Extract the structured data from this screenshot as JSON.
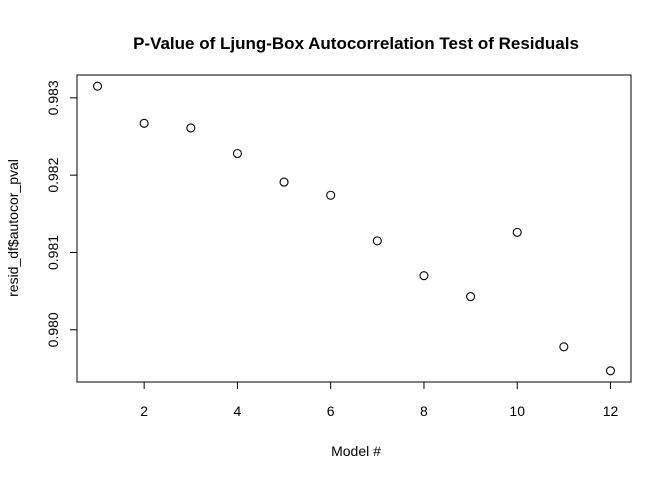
{
  "chart_data": {
    "type": "scatter",
    "title": "P-Value of Ljung-Box Autocorrelation Test of Residuals",
    "xlabel": "Model #",
    "ylabel": "resid_df$autocor_pval",
    "x": [
      1,
      2,
      3,
      4,
      5,
      6,
      7,
      8,
      9,
      10,
      11,
      12
    ],
    "y": [
      0.98315,
      0.98267,
      0.98261,
      0.98228,
      0.98191,
      0.98174,
      0.98115,
      0.9807,
      0.98043,
      0.98126,
      0.97978,
      0.97947
    ],
    "xlim": [
      0.56,
      12.44
    ],
    "ylim": [
      0.979325,
      0.983295
    ],
    "x_ticks": [
      2,
      4,
      6,
      8,
      10,
      12
    ],
    "x_tick_labels": [
      "2",
      "4",
      "6",
      "8",
      "10",
      "12"
    ],
    "y_ticks": [
      0.98,
      0.981,
      0.982,
      0.983
    ],
    "y_tick_labels": [
      "0.980",
      "0.981",
      "0.982",
      "0.983"
    ],
    "marker": "open-circle",
    "grid": false,
    "legend": "none",
    "colors": {
      "background": "#ffffff",
      "foreground": "#000000"
    }
  }
}
